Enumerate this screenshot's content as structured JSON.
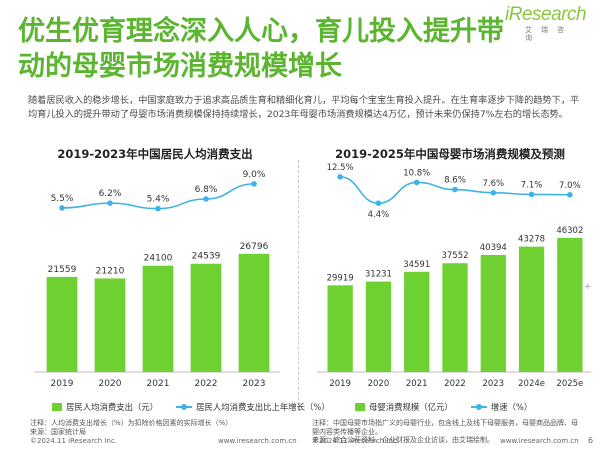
{
  "header": {
    "title_line1": "优生优育理念深入人心，育儿投入提升带",
    "title_line2": "动的母婴市场消费规模增长",
    "brand": "iResearch",
    "brand_sub": "艾瑞咨询"
  },
  "intro": "随着居民收入的稳步增长，中国家庭致力于追求高品质生育和精细化育儿，平均每个宝宝生育投入提升。在生育率逐步下降的趋势下，平均育儿投入的提升带动了母婴市场消费规模保持持续增长，2023年母婴市场消费规模达4万亿，预计未来仍保持7%左右的增长态势。",
  "colors": {
    "bar": "#6fd131",
    "line": "#3fb2e6",
    "title": "#5cb531"
  },
  "chart_data": [
    {
      "type": "bar",
      "title": "2019-2023年中国居民人均消费支出",
      "categories": [
        "2019",
        "2020",
        "2021",
        "2022",
        "2023"
      ],
      "series": [
        {
          "name": "居民人均消费支出（元）",
          "kind": "bar",
          "values": [
            21559,
            21210,
            24100,
            24539,
            26796
          ],
          "labels": [
            "21559",
            "21210",
            "24100",
            "24539",
            "26796"
          ]
        },
        {
          "name": "居民人均消费支出比上年增长（%）",
          "kind": "line",
          "values": [
            5.5,
            6.2,
            5.4,
            6.8,
            9.0
          ],
          "labels": [
            "5.5%",
            "6.2%",
            "5.4%",
            "6.8%",
            "9.0%"
          ]
        }
      ],
      "bar_ylim": [
        0,
        34000
      ],
      "line_ylim": [
        2,
        10
      ],
      "notes": [
        "注释：人均消费支出增长（%）为扣除价格因素的实际增长（%）",
        "来源：国家统计局"
      ]
    },
    {
      "type": "bar",
      "title": "2019-2025年中国母婴市场消费规模及预测",
      "categories": [
        "2019",
        "2020",
        "2021",
        "2022",
        "2023",
        "2024e",
        "2025e"
      ],
      "series": [
        {
          "name": "母婴消费规模（亿元）",
          "kind": "bar",
          "values": [
            29919,
            31231,
            34591,
            37552,
            40394,
            43278,
            46302
          ],
          "labels": [
            "29919",
            "31231",
            "34591",
            "37552",
            "40394",
            "43278",
            "46302"
          ]
        },
        {
          "name": "增速（%）",
          "kind": "line",
          "values": [
            12.5,
            4.4,
            10.8,
            8.6,
            7.6,
            7.1,
            7.0
          ],
          "labels": [
            "12.5%",
            "4.4%",
            "10.8%",
            "8.6%",
            "7.6%",
            "7.1%",
            "7.0%"
          ]
        }
      ],
      "bar_ylim": [
        0,
        58000
      ],
      "line_ylim": [
        -2,
        14
      ],
      "notes": [
        "注释：中国母婴市场指广义的母婴行业，包含线上及线下母婴服务，母婴商品品牌、母婴内容类传播等企业。",
        "来源：综合公开资料、企业财报及企业访谈，由艾瑞绘制。"
      ]
    }
  ],
  "footer": {
    "copyright": "©2024.11 iResearch Inc.",
    "site": "www.iresearch.com.cn",
    "page": "6"
  },
  "side_mark": "+"
}
